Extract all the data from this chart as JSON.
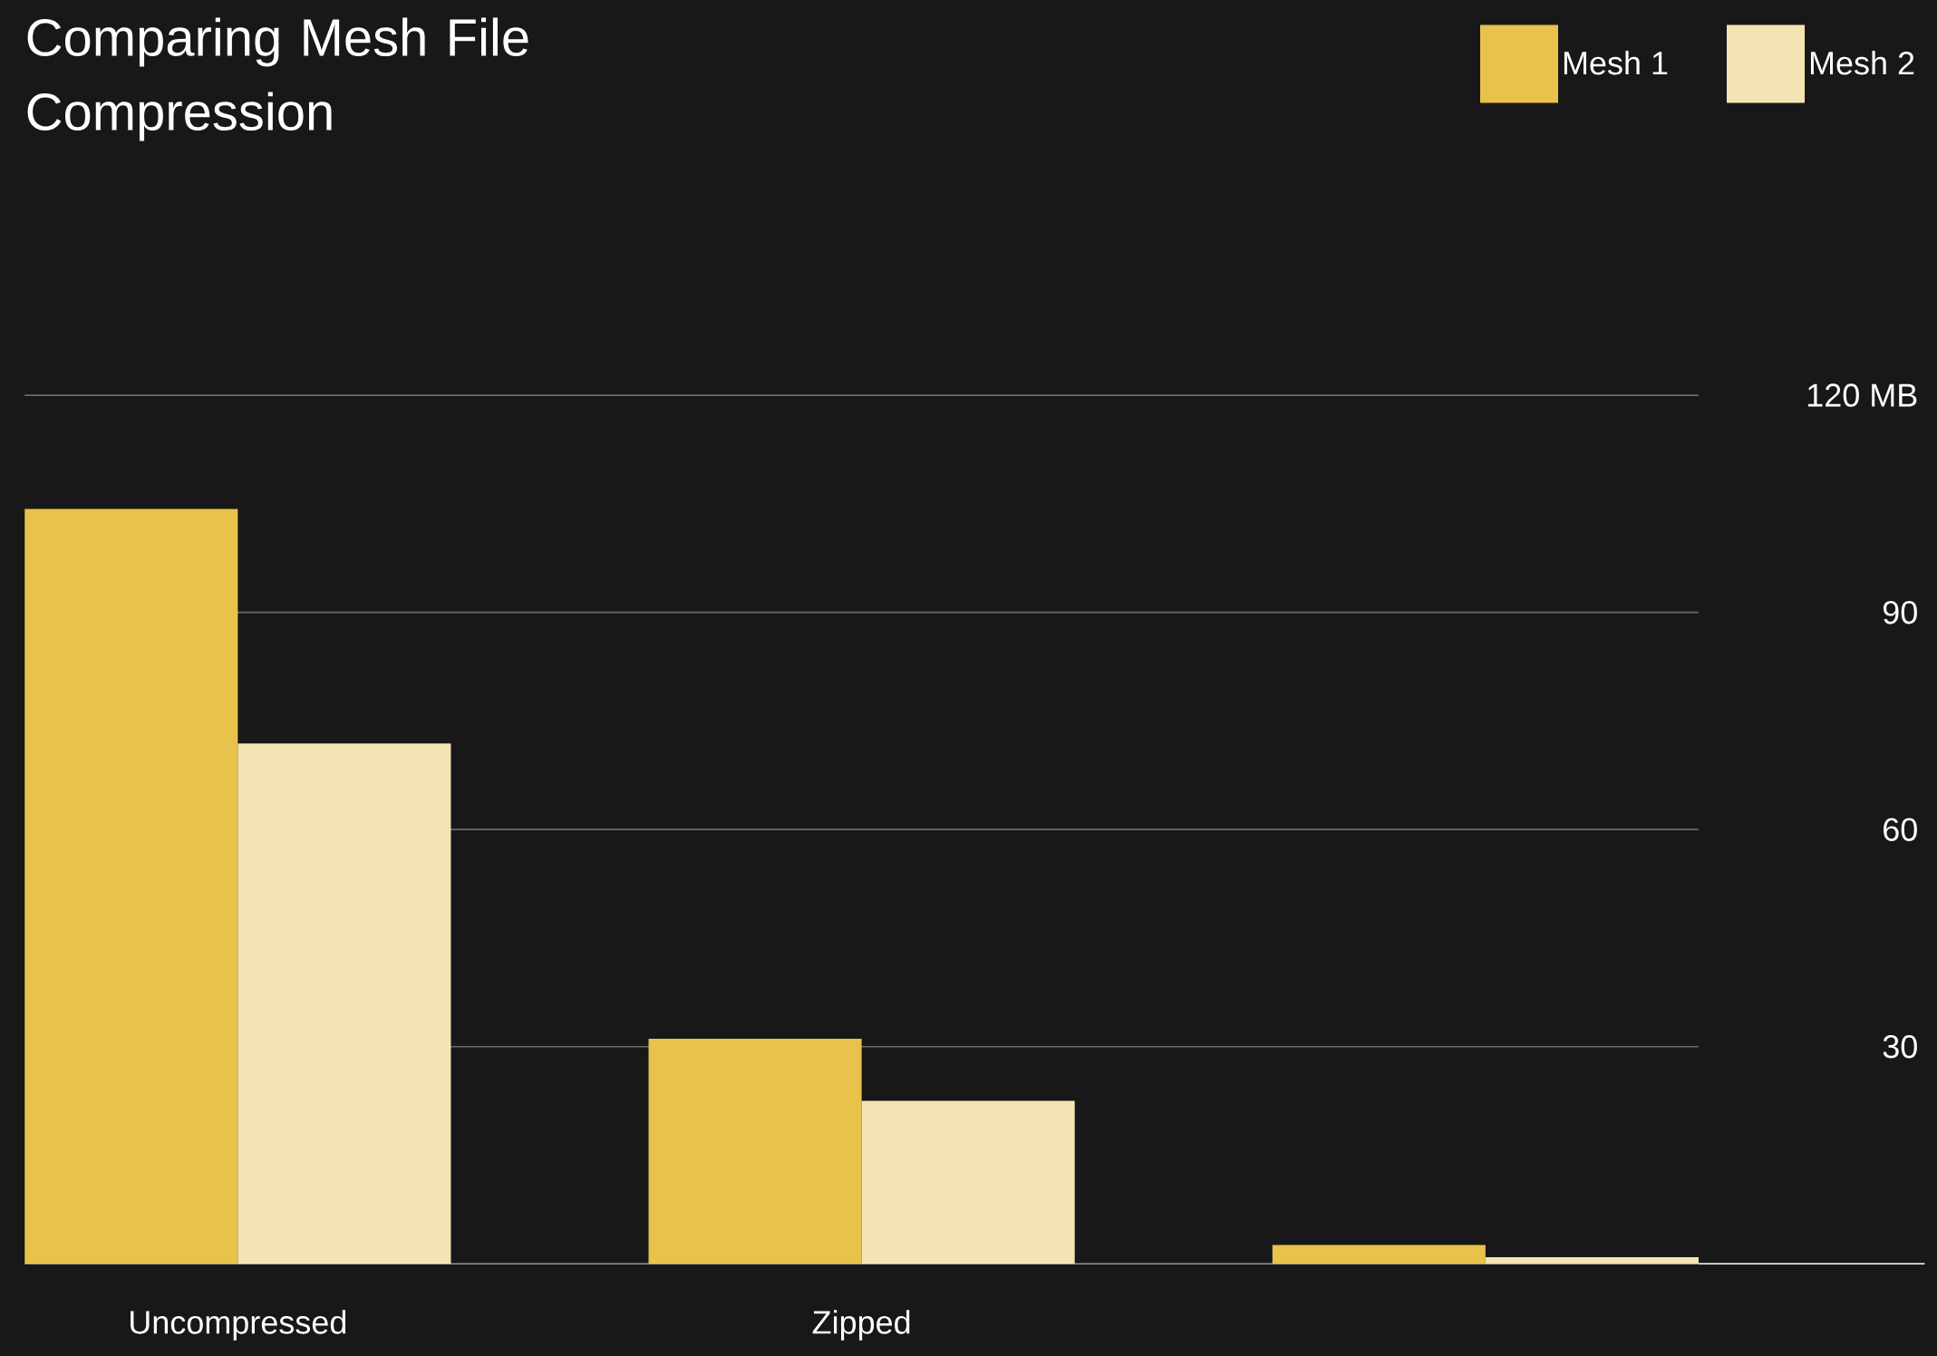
{
  "chart_data": {
    "type": "bar",
    "title": "Comparing Mesh File Compression",
    "categories": [
      "Uncompressed",
      "Zipped",
      null
    ],
    "series": [
      {
        "name": "Mesh 1",
        "color": "#e8c24b",
        "values": [
          104.3,
          31.1,
          2.6
        ]
      },
      {
        "name": "Mesh 2",
        "color": "#f5e4b3",
        "values": [
          71.9,
          22.5,
          0.9
        ]
      }
    ],
    "ylim": [
      0,
      120
    ],
    "yticks": [
      30,
      60,
      90,
      {
        "value": 120,
        "label": "120 MB"
      }
    ],
    "grid": "y",
    "legend": "top right"
  }
}
